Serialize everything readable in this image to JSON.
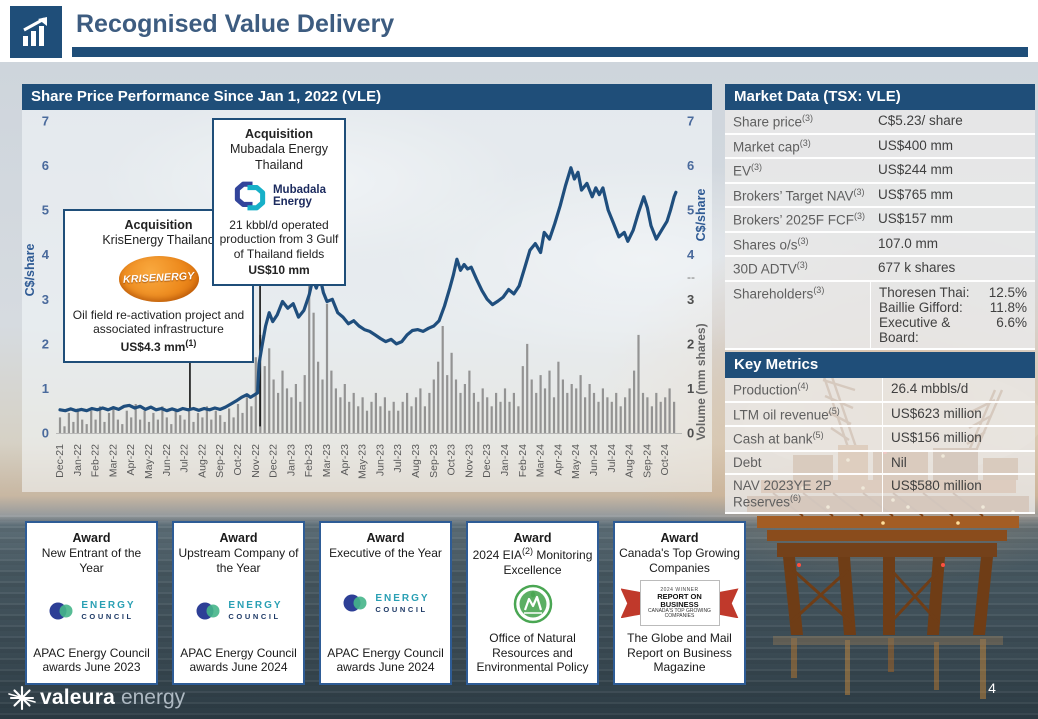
{
  "header": {
    "title": "Recognised Value Delivery"
  },
  "chart_panel": {
    "title": "Share Price Performance Since Jan 1, 2022 (VLE)",
    "left_axis_title": "C$/share",
    "right_axis_price_title": "C$/share",
    "right_axis_volume_title": "Volume (mm shares)"
  },
  "chart_data": {
    "type": "line+bar",
    "title": "Share Price Performance Since Jan 1, 2022 (VLE)",
    "x_tick_labels": [
      "Dec-21",
      "Jan-22",
      "Feb-22",
      "Mar-22",
      "Apr-22",
      "May-22",
      "Jun-22",
      "Jul-22",
      "Aug-22",
      "Sep-22",
      "Oct-22",
      "Nov-22",
      "Dec-22",
      "Jan-23",
      "Feb-23",
      "Mar-23",
      "Apr-23",
      "May-23",
      "Jun-23",
      "Jul-23",
      "Aug-23",
      "Sep-23",
      "Oct-23",
      "Nov-23",
      "Dec-23",
      "Jan-24",
      "Feb-24",
      "Mar-24",
      "Apr-24",
      "May-24",
      "Jun-24",
      "Jul-24",
      "Aug-24",
      "Sep-24",
      "Oct-24"
    ],
    "y_left": {
      "label": "C$/share",
      "min": 0,
      "max": 7,
      "ticks": [
        7,
        6,
        5,
        4,
        3,
        2,
        1,
        0
      ]
    },
    "y_right_price": {
      "label": "C$/share",
      "ticks": [
        7,
        6,
        5,
        4
      ]
    },
    "y_right_separator": "--",
    "y_right_volume": {
      "label": "Volume (mm shares)",
      "ticks": [
        3,
        2,
        1,
        0
      ]
    },
    "price_series": {
      "name": "VLE share price (C$/share)",
      "anchors_t_price": [
        [
          0,
          0.52
        ],
        [
          0.3,
          0.5
        ],
        [
          0.6,
          0.54
        ],
        [
          0.9,
          0.5
        ],
        [
          1.2,
          0.53
        ],
        [
          1.5,
          0.5
        ],
        [
          1.8,
          0.55
        ],
        [
          2.1,
          0.52
        ],
        [
          2.4,
          0.56
        ],
        [
          2.7,
          0.52
        ],
        [
          3,
          0.57
        ],
        [
          3.3,
          0.53
        ],
        [
          3.6,
          0.6
        ],
        [
          3.9,
          0.62
        ],
        [
          4.2,
          0.56
        ],
        [
          4.5,
          0.6
        ],
        [
          4.8,
          0.53
        ],
        [
          5.1,
          0.58
        ],
        [
          5.4,
          0.52
        ],
        [
          5.7,
          0.55
        ],
        [
          6,
          0.5
        ],
        [
          6.3,
          0.54
        ],
        [
          6.6,
          0.5
        ],
        [
          6.9,
          0.55
        ],
        [
          7.2,
          0.52
        ],
        [
          7.5,
          0.55
        ],
        [
          7.8,
          0.51
        ],
        [
          8.1,
          0.55
        ],
        [
          8.4,
          0.52
        ],
        [
          8.7,
          0.56
        ],
        [
          9,
          0.53
        ],
        [
          9.3,
          0.58
        ],
        [
          9.6,
          0.65
        ],
        [
          9.9,
          0.72
        ],
        [
          10.2,
          0.8
        ],
        [
          10.5,
          0.86
        ],
        [
          10.7,
          0.8
        ],
        [
          10.9,
          0.85
        ],
        [
          11.1,
          0.9
        ],
        [
          11.18,
          1.55
        ],
        [
          11.35,
          1.95
        ],
        [
          11.55,
          2.4
        ],
        [
          11.75,
          2.7
        ],
        [
          11.95,
          2.5
        ],
        [
          12.2,
          2.65
        ],
        [
          12.5,
          2.95
        ],
        [
          12.8,
          2.8
        ],
        [
          13.1,
          2.9
        ],
        [
          13.4,
          2.6
        ],
        [
          13.7,
          2.75
        ],
        [
          14,
          3.1
        ],
        [
          14.2,
          3.45
        ],
        [
          14.4,
          3.25
        ],
        [
          14.6,
          3.5
        ],
        [
          14.8,
          3.15
        ],
        [
          15,
          2.95
        ],
        [
          15.3,
          3
        ],
        [
          15.6,
          2.7
        ],
        [
          15.9,
          2.6
        ],
        [
          16.2,
          2.45
        ],
        [
          16.5,
          2.52
        ],
        [
          16.8,
          2.4
        ],
        [
          17.1,
          2.32
        ],
        [
          17.4,
          2.28
        ],
        [
          17.7,
          2.2
        ],
        [
          18,
          2.12
        ],
        [
          18.3,
          2.05
        ],
        [
          18.6,
          2.1
        ],
        [
          18.9,
          2
        ],
        [
          19.2,
          2.05
        ],
        [
          19.5,
          2.2
        ],
        [
          19.8,
          2.3
        ],
        [
          20.1,
          2.32
        ],
        [
          20.4,
          2.28
        ],
        [
          20.7,
          2.35
        ],
        [
          21,
          2.4
        ],
        [
          21.3,
          2.52
        ],
        [
          21.6,
          2.85
        ],
        [
          21.9,
          3.25
        ],
        [
          22.1,
          3.55
        ],
        [
          22.3,
          3.9
        ],
        [
          22.5,
          3.65
        ],
        [
          22.7,
          3.78
        ],
        [
          22.9,
          3.68
        ],
        [
          23.1,
          3.72
        ],
        [
          23.4,
          3.45
        ],
        [
          23.7,
          3.2
        ],
        [
          24,
          3
        ],
        [
          24.3,
          2.88
        ],
        [
          24.6,
          2.96
        ],
        [
          24.9,
          3.05
        ],
        [
          25.2,
          3.22
        ],
        [
          25.5,
          3.12
        ],
        [
          25.8,
          3.3
        ],
        [
          26.1,
          3.7
        ],
        [
          26.4,
          4.1
        ],
        [
          26.7,
          4.25
        ],
        [
          27,
          4.05
        ],
        [
          27.2,
          4.5
        ],
        [
          27.5,
          4.35
        ],
        [
          27.8,
          4.7
        ],
        [
          28.1,
          5.1
        ],
        [
          28.4,
          5.55
        ],
        [
          28.7,
          5.95
        ],
        [
          28.9,
          5.7
        ],
        [
          29.1,
          5.85
        ],
        [
          29.3,
          5.45
        ],
        [
          29.6,
          5.6
        ],
        [
          29.9,
          5.3
        ],
        [
          30.1,
          5.5
        ],
        [
          30.3,
          5.35
        ],
        [
          30.5,
          5.5
        ],
        [
          30.8,
          5
        ],
        [
          31.1,
          4.7
        ],
        [
          31.4,
          4.4
        ],
        [
          31.7,
          4.5
        ],
        [
          31.9,
          4.3
        ],
        [
          32.2,
          4.55
        ],
        [
          32.5,
          4.95
        ],
        [
          32.8,
          5.3
        ],
        [
          33,
          5.05
        ],
        [
          33.2,
          4.65
        ],
        [
          33.5,
          4.35
        ],
        [
          33.8,
          4.55
        ],
        [
          34.1,
          4.75
        ],
        [
          34.3,
          5
        ],
        [
          34.5,
          5.3
        ],
        [
          34.6,
          5.4
        ]
      ]
    },
    "volume_series": {
      "name": "Volume (mm shares)",
      "t_step_months": 0.25,
      "values": [
        0.35,
        0.15,
        0.45,
        0.25,
        0.55,
        0.3,
        0.2,
        0.5,
        0.3,
        0.6,
        0.25,
        0.45,
        0.6,
        0.3,
        0.2,
        0.5,
        0.35,
        0.65,
        0.3,
        0.5,
        0.25,
        0.45,
        0.3,
        0.6,
        0.35,
        0.2,
        0.5,
        0.4,
        0.3,
        0.55,
        0.25,
        0.45,
        0.35,
        0.6,
        0.3,
        0.5,
        0.4,
        0.25,
        0.55,
        0.35,
        0.65,
        0.45,
        0.8,
        0.6,
        1.7,
        2.2,
        1.5,
        1.9,
        1.2,
        0.9,
        1.4,
        1,
        0.8,
        1.1,
        0.7,
        1.3,
        3.5,
        2.7,
        1.6,
        1.2,
        2.9,
        1.4,
        1,
        0.8,
        1.1,
        0.7,
        0.9,
        0.6,
        0.8,
        0.5,
        0.7,
        0.9,
        0.6,
        0.8,
        0.5,
        0.7,
        0.5,
        0.7,
        0.9,
        0.6,
        0.8,
        1,
        0.6,
        0.9,
        1.2,
        1.6,
        2.4,
        1.3,
        1.8,
        1.2,
        0.9,
        1.1,
        1.4,
        0.9,
        0.7,
        1,
        0.8,
        0.6,
        0.9,
        0.7,
        1,
        0.7,
        0.9,
        0.6,
        1.5,
        2,
        1.2,
        0.9,
        1.3,
        1,
        1.4,
        0.8,
        1.6,
        1.2,
        0.9,
        1.1,
        1,
        1.3,
        0.8,
        1.1,
        0.9,
        0.7,
        1,
        0.8,
        0.7,
        0.9,
        0.6,
        0.8,
        1,
        1.4,
        2.2,
        0.9,
        0.8,
        0.6,
        0.9,
        0.7,
        0.8,
        1,
        0.7,
        1.5,
        0.9
      ]
    },
    "event_lines": [
      {
        "t": 7.3,
        "from_price": 1.6,
        "to_price": 0.55
      },
      {
        "t": 11.24,
        "from_price": 3.42,
        "to_price": 0.15
      }
    ]
  },
  "annotations": [
    {
      "heading": "Acquisition",
      "sub": "KrisEnergy Thailand",
      "logo_text": "KRISENERGY",
      "body": "Oil field re-activation project and associated infrastructure",
      "amount": "US$4.3 mm",
      "amount_sup": "(1)"
    },
    {
      "heading": "Acquisition",
      "sub": "Mubadala Energy Thailand",
      "logo_line1": "Mubadala",
      "logo_line2": "Energy",
      "body": "21 kbbl/d operated production from 3 Gulf of Thailand fields",
      "amount": "US$10 mm",
      "amount_sup": ""
    }
  ],
  "market_data": {
    "title": "Market Data (TSX: VLE)",
    "rows": [
      {
        "label": "Share price",
        "sup": "(3)",
        "value": "C$5.23/ share"
      },
      {
        "label": "Market cap",
        "sup": "(3)",
        "value": "US$400 mm"
      },
      {
        "label": "EV",
        "sup": "(3)",
        "value": "US$244 mm"
      },
      {
        "label": "Brokers’ Target NAV",
        "sup": "(3)",
        "value": "US$765 mm"
      },
      {
        "label": "Brokers’ 2025F FCF",
        "sup": "(3)",
        "value": "US$157 mm"
      },
      {
        "label": "Shares o/s",
        "sup": "(3)",
        "value": "107.0 mm"
      },
      {
        "label": "30D ADTV",
        "sup": "(3)",
        "value": "677 k shares"
      }
    ],
    "shareholders": {
      "label": "Shareholders",
      "sup": "(3)",
      "lines": [
        {
          "name": "Thoresen Thai:",
          "pct": "12.5%"
        },
        {
          "name": "Baillie Gifford:",
          "pct": "11.8%"
        },
        {
          "name": "Executive & Board:",
          "pct": "6.6%"
        }
      ]
    }
  },
  "key_metrics": {
    "title": "Key Metrics",
    "rows": [
      {
        "label": "Production",
        "sup": "(4)",
        "value": "26.4 mbbls/d"
      },
      {
        "label": "LTM oil revenue",
        "sup": "(5)",
        "value": "US$623 million"
      },
      {
        "label": "Cash at bank",
        "sup": "(5)",
        "value": "US$156 million"
      },
      {
        "label": "Debt",
        "sup": "",
        "value": "Nil"
      },
      {
        "label": "NAV 2023YE 2P Reserves",
        "sup": "(6)",
        "value": "US$580 million"
      }
    ]
  },
  "awards": [
    {
      "title": "Award",
      "subtitle_pre": "New Entrant of the Year",
      "subtitle_sup": "",
      "subtitle_post": "",
      "logo": "energy-council",
      "logo_text1": "ENERGY",
      "logo_text2": "COUNCIL",
      "caption": "APAC Energy Council awards June 2023"
    },
    {
      "title": "Award",
      "subtitle_pre": "Upstream Company of the Year",
      "subtitle_sup": "",
      "subtitle_post": "",
      "logo": "energy-council",
      "logo_text1": "ENERGY",
      "logo_text2": "COUNCIL",
      "caption": "APAC Energy Council awards June 2024"
    },
    {
      "title": "Award",
      "subtitle_pre": "Executive of the Year",
      "subtitle_sup": "",
      "subtitle_post": "",
      "logo": "energy-council",
      "logo_text1": "ENERGY",
      "logo_text2": "COUNCIL",
      "caption": "APAC Energy Council awards June 2024"
    },
    {
      "title": "Award",
      "subtitle_pre": "2024 EIA",
      "subtitle_sup": "(2)",
      "subtitle_post": " Monitoring Excellence",
      "logo": "eia-emblem",
      "logo_text1": "",
      "logo_text2": "",
      "caption": "Office of Natural Resources and Environmental Policy"
    },
    {
      "title": "Award",
      "subtitle_pre": "Canada's Top Growing Companies",
      "subtitle_sup": "",
      "subtitle_post": "",
      "logo": "report-on-business",
      "ribbon_line1": "2024 WINNER",
      "ribbon_line2": "REPORT ON BUSINESS",
      "ribbon_line3": "CANADA'S TOP GROWING COMPANIES",
      "caption": "The Globe and Mail Report on Business Magazine"
    }
  ],
  "footer": {
    "logo_primary": "valeura",
    "logo_secondary": "energy",
    "page_number": "4"
  },
  "colors": {
    "accent_navy": "#1F4E79",
    "title_slate": "#3d5c80",
    "line_blue": "#1f4e7d",
    "volume_gray": "#8a8a8a",
    "krisenergy_orange": "#ed8a1d",
    "mubadala_teal": "#17b0c8",
    "mubadala_navy": "#32449b",
    "council_green": "#45b58a",
    "council_navy": "#2d3f96",
    "eia_green": "#4aa653",
    "rob_red": "#c0392b"
  }
}
